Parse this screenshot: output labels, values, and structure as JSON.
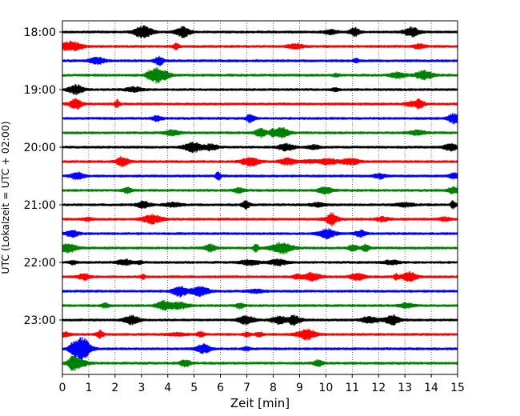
{
  "chart_data": {
    "type": "line",
    "title": "",
    "xlabel": "Zeit  [min]",
    "ylabel": "UTC (Lokalzeit = UTC + 02:00)",
    "xlim": [
      0,
      15
    ],
    "xticks": [
      "0",
      "1",
      "2",
      "3",
      "4",
      "5",
      "6",
      "7",
      "8",
      "9",
      "10",
      "11",
      "12",
      "13",
      "14",
      "15"
    ],
    "yticks": [
      "18:00",
      "19:00",
      "20:00",
      "21:00",
      "22:00",
      "23:00"
    ],
    "grid": "vertical dotted lines at each minute",
    "trace_colors": [
      "#000000",
      "#ff0000",
      "#0000ff",
      "#008000"
    ],
    "traces": [
      "18:00",
      "18:15",
      "18:30",
      "18:45",
      "19:00",
      "19:15",
      "19:30",
      "19:45",
      "20:00",
      "20:15",
      "20:30",
      "20:45",
      "21:00",
      "21:15",
      "21:30",
      "21:45",
      "22:00",
      "22:15",
      "22:30",
      "22:45",
      "23:00",
      "23:15",
      "23:30",
      "23:45"
    ]
  }
}
